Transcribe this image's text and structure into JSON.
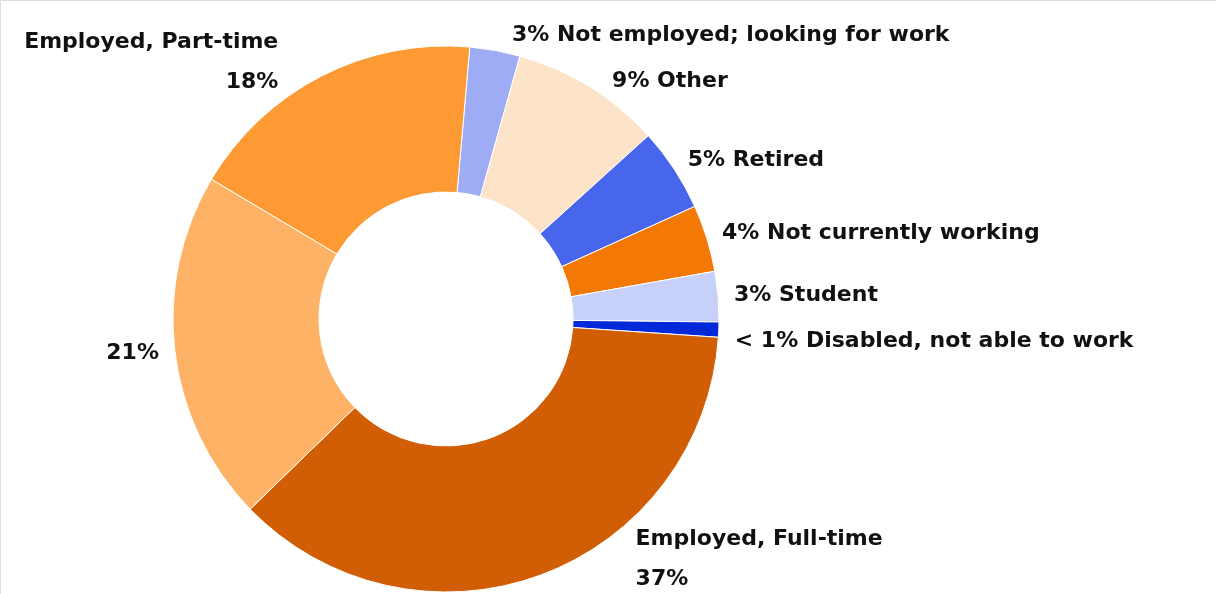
{
  "chart_data": {
    "type": "donut",
    "categories": [
      "Not employed; looking for work",
      "Other",
      "Retired",
      "Not currently working",
      "Student",
      "Disabled, not able to work",
      "Employed, Full-time",
      null,
      "Employed, Part-time"
    ],
    "values": [
      3,
      9,
      5,
      4,
      3,
      0.9,
      37,
      21,
      18
    ],
    "value_labels": [
      "3%",
      "9%",
      "5%",
      "4%",
      "3%",
      "< 1%",
      "37%",
      "21%",
      "18%"
    ],
    "colors": [
      "#9eacf5",
      "#fde4c8",
      "#4866eb",
      "#f47806",
      "#c7d0f9",
      "#0128d9",
      "#d15d05",
      "#fdb266",
      "#fd9a33"
    ]
  }
}
